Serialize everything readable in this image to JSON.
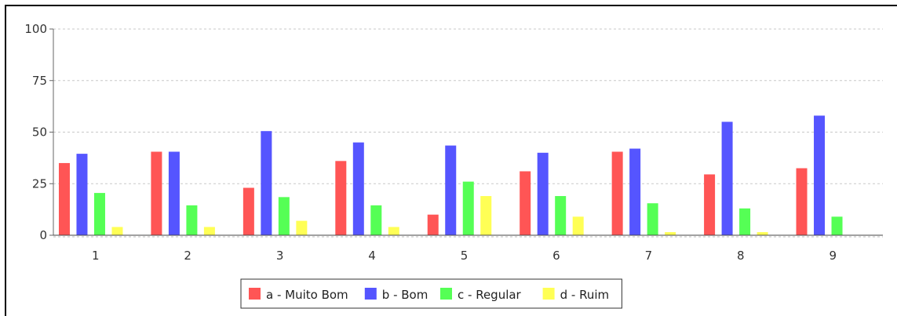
{
  "chart_data": {
    "type": "bar",
    "categories": [
      "1",
      "2",
      "3",
      "4",
      "5",
      "6",
      "7",
      "8",
      "9"
    ],
    "series": [
      {
        "name": "a - Muito Bom",
        "color": "#ff5555",
        "values": [
          35,
          40.5,
          23,
          36,
          10,
          31,
          40.5,
          29.5,
          32.5
        ]
      },
      {
        "name": "b - Bom",
        "color": "#5555ff",
        "values": [
          39.5,
          40.5,
          50.5,
          45,
          43.5,
          40,
          42,
          55,
          58
        ]
      },
      {
        "name": "c - Regular",
        "color": "#55ff55",
        "values": [
          20.5,
          14.5,
          18.5,
          14.5,
          26,
          19,
          15.5,
          13,
          9
        ]
      },
      {
        "name": "d - Ruim",
        "color": "#ffff55",
        "values": [
          4,
          4,
          7,
          4,
          19,
          9,
          1.5,
          1.5,
          0
        ]
      }
    ],
    "y_ticks": [
      "0",
      "25",
      "50",
      "75",
      "100"
    ],
    "ylim": [
      0,
      100
    ],
    "grid": true,
    "legend_position": "bottom-center"
  }
}
